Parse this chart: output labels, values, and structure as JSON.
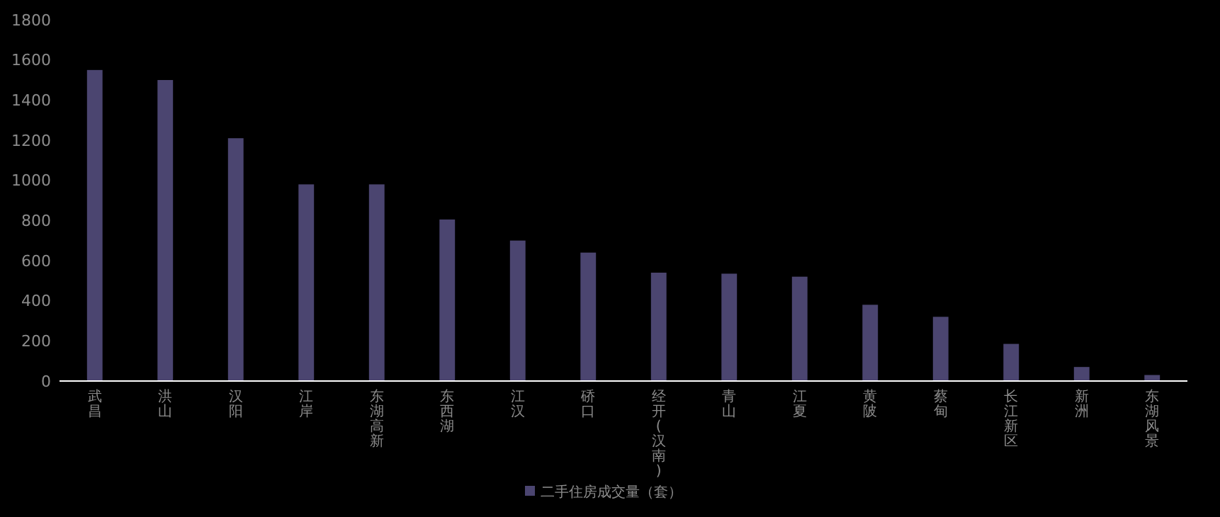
{
  "chart_data": {
    "type": "bar",
    "categories": [
      "武昌",
      "洪山",
      "汉阳",
      "江岸",
      "东湖高新",
      "东西湖",
      "江汉",
      "硚口",
      "经开(汉南)",
      "青山",
      "江夏",
      "黄陂",
      "蔡甸",
      "长江新区",
      "新洲",
      "东湖风景"
    ],
    "series": [
      {
        "name": "二手住房成交量（套）",
        "color": "#4b4570",
        "values": [
          1550,
          1500,
          1210,
          980,
          980,
          805,
          700,
          640,
          540,
          535,
          520,
          380,
          320,
          185,
          70,
          30
        ]
      }
    ],
    "ylim": [
      0,
      1800
    ],
    "yticks": [
      0,
      200,
      400,
      600,
      800,
      1000,
      1200,
      1400,
      1600,
      1800
    ],
    "grid": false,
    "legend": "bottom"
  }
}
